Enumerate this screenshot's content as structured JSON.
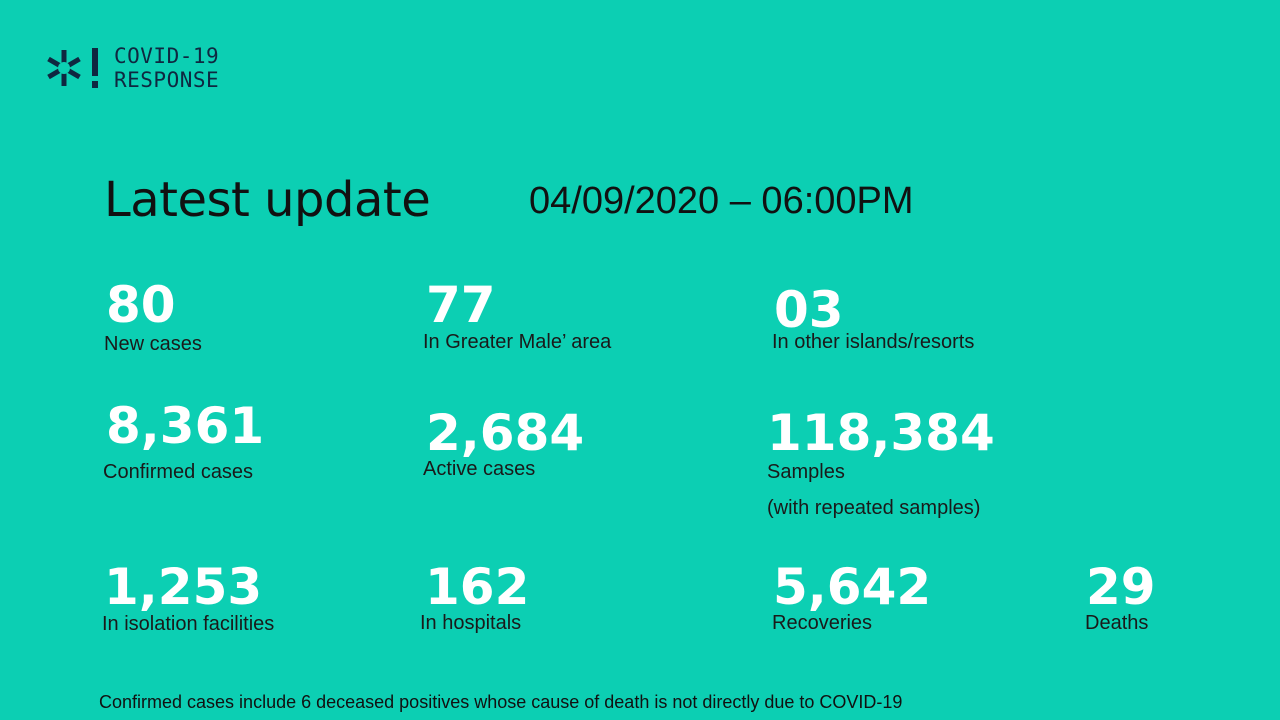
{
  "logo": {
    "line1": "COVID-19",
    "line2": "RESPONSE",
    "icon": "snowflake-exclamation-icon"
  },
  "header": {
    "title": "Latest update",
    "datetime": "04/09/2020 – 06:00PM"
  },
  "stats": {
    "new_cases": {
      "value": "80",
      "label": "New cases"
    },
    "greater_male": {
      "value": "77",
      "label": "In Greater Male’ area"
    },
    "other_islands": {
      "value": "03",
      "label": "In other islands/resorts"
    },
    "confirmed": {
      "value": "8,361",
      "label": "Confirmed cases"
    },
    "active": {
      "value": "2,684",
      "label": "Active cases"
    },
    "samples": {
      "value": "118,384",
      "label": "Samples",
      "note": "(with repeated samples)"
    },
    "isolation": {
      "value": "1,253",
      "label": "In isolation facilities"
    },
    "hospitals": {
      "value": "162",
      "label": "In hospitals"
    },
    "recoveries": {
      "value": "5,642",
      "label": "Recoveries"
    },
    "deaths": {
      "value": "29",
      "label": "Deaths"
    }
  },
  "footnote": "Confirmed cases include 6 deceased positives whose cause of death is not directly due to COVID-19",
  "colors": {
    "background": "#0ccfb3",
    "value": "#ffffff",
    "text": "#111111",
    "logo": "#0f2740"
  }
}
